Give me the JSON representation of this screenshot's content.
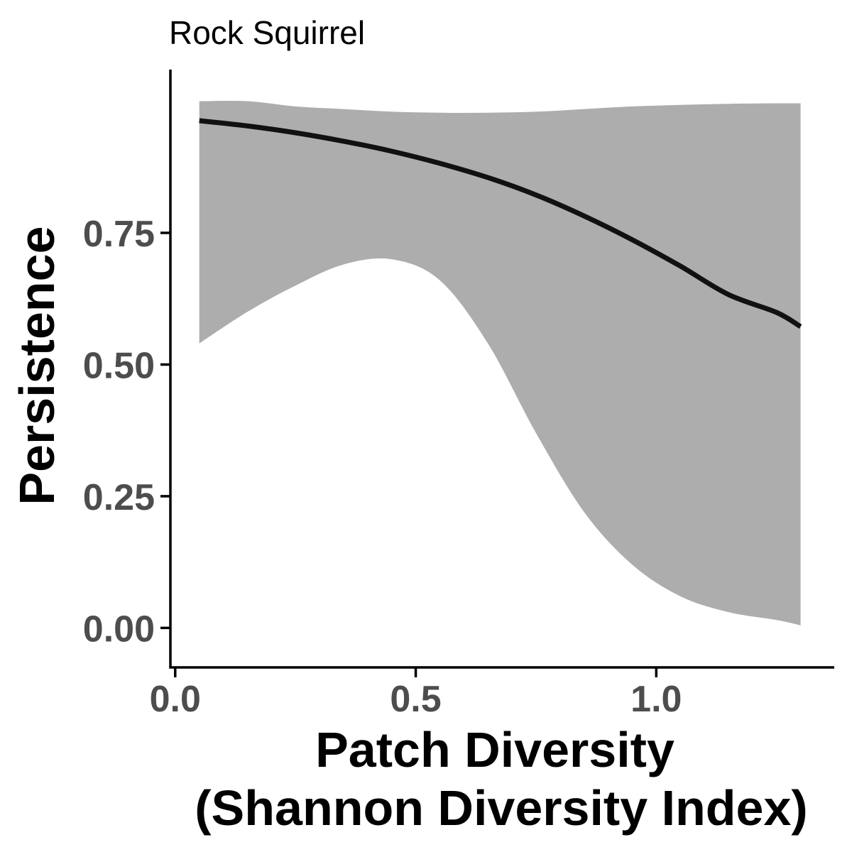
{
  "chart_data": {
    "type": "line",
    "title": "Rock Squirrel",
    "xlabel_lines": [
      "Patch Diversity",
      "(Shannon Diversity Index)"
    ],
    "ylabel": "Persistence",
    "xlim": [
      -0.01,
      1.37
    ],
    "ylim": [
      -0.075,
      1.06
    ],
    "x_ticks": [
      {
        "value": 0.0,
        "label": "0.0"
      },
      {
        "value": 0.5,
        "label": "0.5"
      },
      {
        "value": 1.0,
        "label": "1.0"
      }
    ],
    "y_ticks": [
      {
        "value": 0.0,
        "label": "0.00"
      },
      {
        "value": 0.25,
        "label": "0.25"
      },
      {
        "value": 0.5,
        "label": "0.50"
      },
      {
        "value": 0.75,
        "label": "0.75"
      }
    ],
    "grid": false,
    "series": [
      {
        "x": [
          0.05,
          0.15,
          0.25,
          0.35,
          0.45,
          0.55,
          0.65,
          0.75,
          0.85,
          0.95,
          1.05,
          1.15,
          1.25,
          1.3
        ],
        "y": [
          0.963,
          0.953,
          0.94,
          0.924,
          0.905,
          0.882,
          0.855,
          0.822,
          0.782,
          0.737,
          0.687,
          0.633,
          0.599,
          0.572
        ],
        "lower": [
          0.54,
          0.6,
          0.65,
          0.69,
          0.7,
          0.66,
          0.54,
          0.37,
          0.22,
          0.12,
          0.06,
          0.03,
          0.015,
          0.005
        ],
        "upper": [
          1.0,
          1.0,
          0.99,
          0.985,
          0.98,
          0.978,
          0.978,
          0.98,
          0.985,
          0.99,
          0.993,
          0.995,
          0.996,
          0.996
        ]
      }
    ],
    "colors": {
      "line": "#111111",
      "ribbon": "#adadad",
      "axis": "#000000",
      "tick_label": "#4d4d4d"
    }
  }
}
